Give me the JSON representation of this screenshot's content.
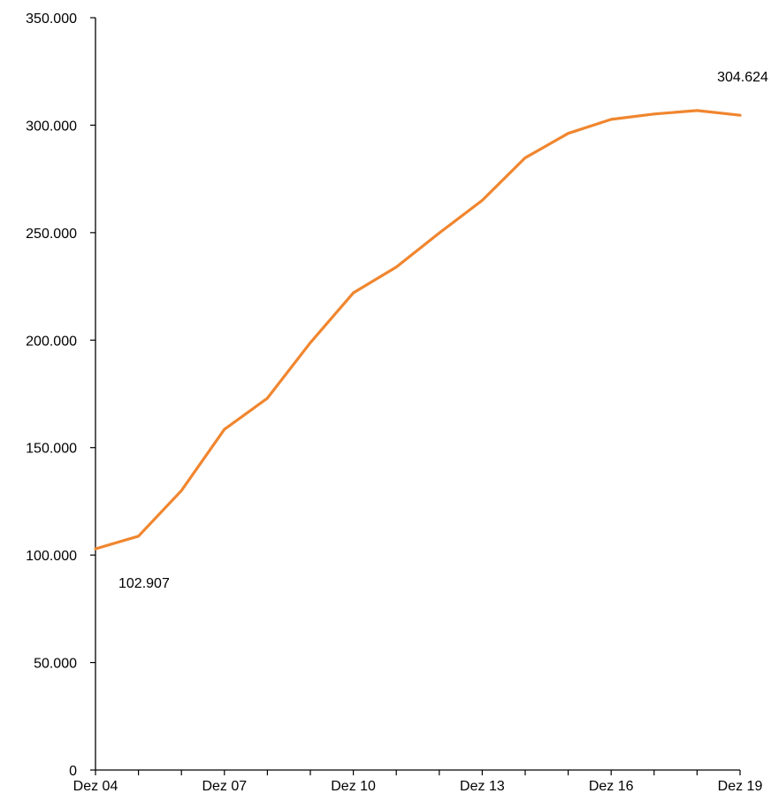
{
  "chart_data": {
    "type": "line",
    "title": "",
    "xlabel": "",
    "ylabel": "",
    "x_ticks": [
      "Dez 04",
      "",
      "",
      "Dez 07",
      "",
      "",
      "Dez 10",
      "",
      "",
      "Dez 13",
      "",
      "",
      "Dez 16",
      "",
      "",
      "Dez 19"
    ],
    "x_tick_labels": [
      "Dez 04",
      "Dez 07",
      "Dez 10",
      "Dez 13",
      "Dez 16",
      "Dez 19"
    ],
    "ylim": [
      0,
      350000
    ],
    "y_ticks": [
      0,
      50000,
      100000,
      150000,
      200000,
      250000,
      300000,
      350000
    ],
    "y_tick_labels": [
      "0",
      "50.000",
      "100.000",
      "150.000",
      "200.000",
      "250.000",
      "300.000",
      "350.000"
    ],
    "grid": false,
    "series": [
      {
        "color": "#F0862F",
        "values": [
          102907,
          108800,
          130000,
          158500,
          173000,
          198800,
          222000,
          234000,
          249800,
          265000,
          284800,
          296200,
          302700,
          305200,
          306800,
          304624
        ]
      }
    ],
    "annotations": [
      {
        "index": 0,
        "text": "102.907"
      },
      {
        "index": 15,
        "text": "304.624"
      }
    ]
  }
}
